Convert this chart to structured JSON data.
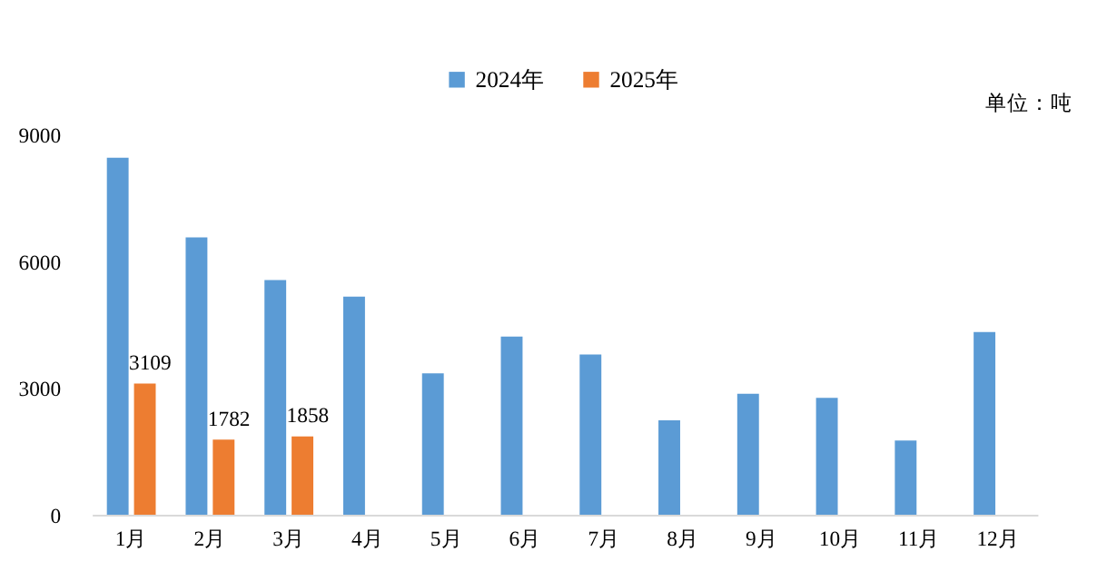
{
  "chart_data": {
    "type": "bar",
    "categories": [
      "1月",
      "2月",
      "3月",
      "4月",
      "5月",
      "6月",
      "7月",
      "8月",
      "9月",
      "10月",
      "11月",
      "12月"
    ],
    "series": [
      {
        "name": "2024年",
        "color": "#5b9bd5",
        "values": [
          8460,
          6570,
          5560,
          5170,
          3350,
          4220,
          3800,
          2240,
          2870,
          2770,
          1760,
          4330
        ]
      },
      {
        "name": "2025年",
        "color": "#ed7d31",
        "values": [
          3109,
          1782,
          1858,
          null,
          null,
          null,
          null,
          null,
          null,
          null,
          null,
          null
        ],
        "value_labels": [
          "3109",
          "1782",
          "1858",
          null,
          null,
          null,
          null,
          null,
          null,
          null,
          null,
          null
        ]
      }
    ],
    "ylim": [
      0,
      9000
    ],
    "yticks": [
      0,
      3000,
      6000,
      9000
    ],
    "grid": false,
    "legend": "top",
    "annotations": [
      "单位：吨"
    ]
  }
}
